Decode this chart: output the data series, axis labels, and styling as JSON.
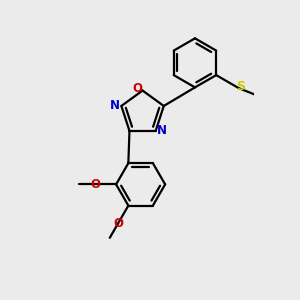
{
  "bg_color": "#ebebeb",
  "bond_color": "#000000",
  "bond_width": 1.6,
  "N_color": "#0000cc",
  "O_color": "#cc0000",
  "S_color": "#cccc00",
  "font_size": 8.5,
  "fig_width": 3.0,
  "fig_height": 3.0,
  "dpi": 100,
  "xlim": [
    -0.3,
    2.5
  ],
  "ylim": [
    -2.5,
    1.5
  ]
}
